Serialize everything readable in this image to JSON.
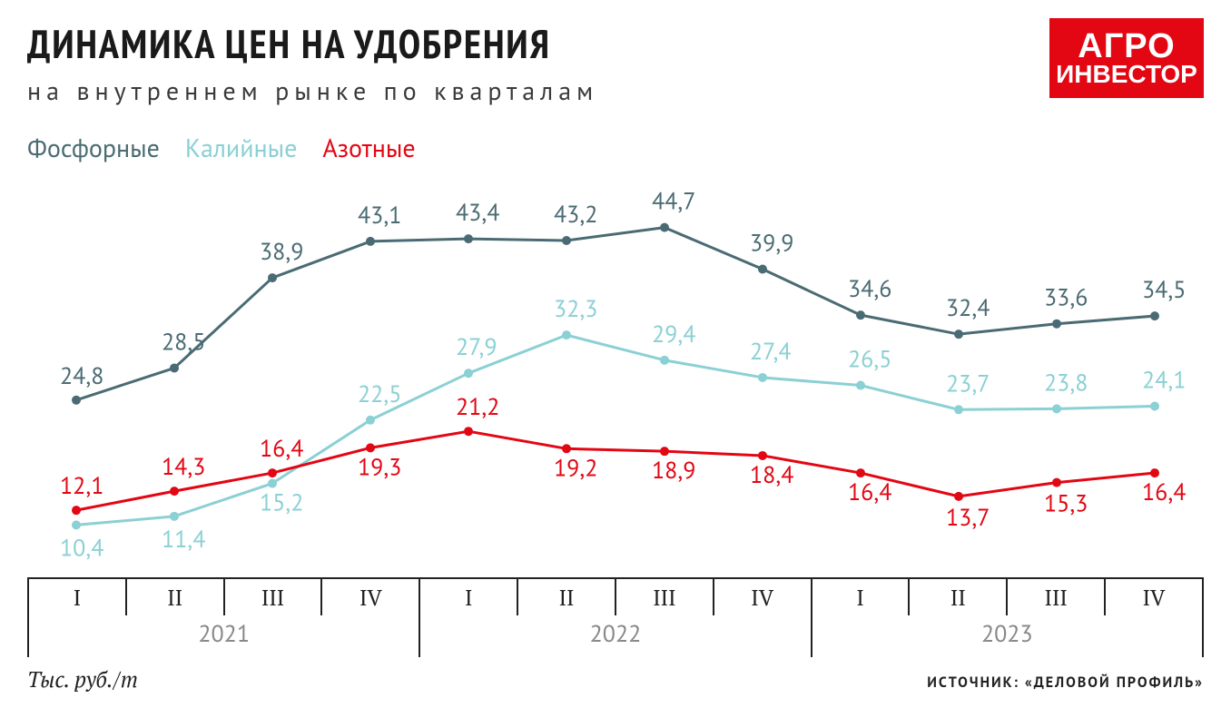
{
  "title": "ДИНАМИКА ЦЕН НА УДОБРЕНИЯ",
  "subtitle": "на внутреннем рынке по кварталам",
  "logo": {
    "line1": "АГРО",
    "line2": "ИНВЕСТОР",
    "bg": "#e30613",
    "fg": "#ffffff"
  },
  "legend": {
    "items": [
      {
        "label": "Фосфорные",
        "color": "#4a6b73"
      },
      {
        "label": "Калийные",
        "color": "#8bd0d4"
      },
      {
        "label": "Азотные",
        "color": "#e30613"
      }
    ]
  },
  "units": "Тыс. руб./т",
  "source": "ИСТОЧНИК: «ДЕЛОВОЙ ПРОФИЛЬ»",
  "chart": {
    "type": "line",
    "background_color": "#ffffff",
    "line_width": 3,
    "marker_radius": 5,
    "label_fontsize": 26,
    "ylim": [
      5,
      50
    ],
    "x_axis": {
      "quarters_per_year": [
        "I",
        "II",
        "III",
        "IV"
      ],
      "years": [
        "2021",
        "2022",
        "2023"
      ],
      "axis_color": "#222222",
      "quarter_fontsize": 24,
      "year_fontsize": 26,
      "year_color": "#888888"
    },
    "series": [
      {
        "name": "Фосфорные",
        "color": "#4a6b73",
        "values": [
          24.8,
          28.5,
          38.9,
          43.1,
          43.4,
          43.2,
          44.7,
          39.9,
          34.6,
          32.4,
          33.6,
          34.5
        ],
        "label_offsets": [
          [
            -18,
            -18
          ],
          [
            -14,
            -20
          ],
          [
            -14,
            -20
          ],
          [
            -14,
            -20
          ],
          [
            -14,
            -20
          ],
          [
            -14,
            -20
          ],
          [
            -14,
            -20
          ],
          [
            -14,
            -20
          ],
          [
            -14,
            -20
          ],
          [
            -14,
            -20
          ],
          [
            -14,
            -20
          ],
          [
            -14,
            -20
          ]
        ]
      },
      {
        "name": "Калийные",
        "color": "#8bd0d4",
        "values": [
          10.4,
          11.4,
          15.2,
          22.5,
          27.9,
          32.3,
          29.4,
          27.4,
          26.5,
          23.7,
          23.8,
          24.1
        ],
        "label_offsets": [
          [
            -18,
            34
          ],
          [
            -14,
            34
          ],
          [
            -14,
            30
          ],
          [
            -14,
            -20
          ],
          [
            -14,
            -20
          ],
          [
            -14,
            -20
          ],
          [
            -14,
            -20
          ],
          [
            -14,
            -20
          ],
          [
            -14,
            -20
          ],
          [
            -14,
            -20
          ],
          [
            -14,
            -20
          ],
          [
            -14,
            -20
          ]
        ]
      },
      {
        "name": "Азотные",
        "color": "#e30613",
        "values": [
          12.1,
          14.3,
          16.4,
          19.3,
          21.2,
          19.2,
          18.9,
          18.4,
          16.4,
          13.7,
          15.3,
          16.4
        ],
        "label_offsets": [
          [
            -18,
            -18
          ],
          [
            -14,
            -18
          ],
          [
            -14,
            -18
          ],
          [
            -14,
            30
          ],
          [
            -14,
            -18
          ],
          [
            -14,
            30
          ],
          [
            -14,
            30
          ],
          [
            -14,
            30
          ],
          [
            -14,
            30
          ],
          [
            -14,
            32
          ],
          [
            -14,
            32
          ],
          [
            -14,
            30
          ]
        ]
      }
    ]
  }
}
